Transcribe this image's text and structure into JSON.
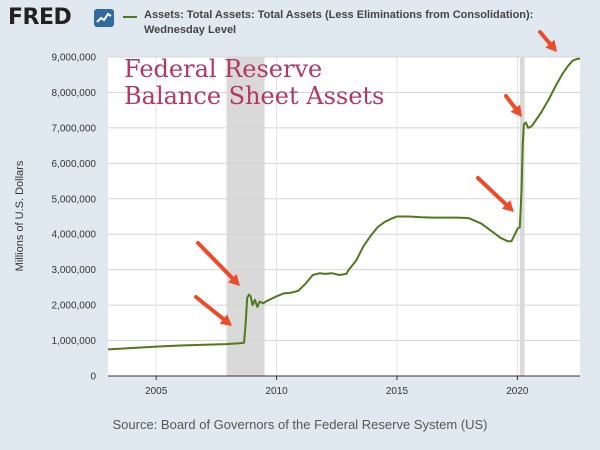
{
  "header": {
    "logo_text": "FRED",
    "logo_icon": "trend-line-icon",
    "legend_label": "Assets: Total Assets: Total Assets (Less Eliminations from Consolidation): Wednesday Level"
  },
  "overlay_title_lines": [
    "Federal Reserve",
    "Balance Sheet Assets"
  ],
  "source": "Source: Board of Governors of the Federal Reserve System (US)",
  "colors": {
    "series": "#4e7a1b",
    "recession": "#d9d9d9",
    "arrow": "#ee4b2b",
    "overlay_title": "#b5375f",
    "page_background": "#e1e9f0"
  },
  "chart_data": {
    "type": "line",
    "ylabel": "Millions of U.S. Dollars",
    "xlabel": "",
    "xlim": [
      2003.0,
      2022.6
    ],
    "ylim": [
      0,
      9000000
    ],
    "xticks": [
      2005,
      2010,
      2015,
      2020
    ],
    "yticks": [
      0,
      1000000,
      2000000,
      3000000,
      4000000,
      5000000,
      6000000,
      7000000,
      8000000,
      9000000
    ],
    "ytick_labels": [
      "0",
      "1,000,000",
      "2,000,000",
      "3,000,000",
      "4,000,000",
      "5,000,000",
      "6,000,000",
      "7,000,000",
      "8,000,000",
      "9,000,000"
    ],
    "grid": true,
    "recessions": [
      [
        2007.92,
        2009.5
      ],
      [
        2020.1,
        2020.3
      ]
    ],
    "series": [
      {
        "x": [
          2003.0,
          2004.0,
          2005.0,
          2006.0,
          2007.0,
          2007.9,
          2008.4,
          2008.65,
          2008.72,
          2008.78,
          2008.85,
          2008.92,
          2009.0,
          2009.1,
          2009.2,
          2009.3,
          2009.45,
          2009.55,
          2009.7,
          2009.85,
          2010.0,
          2010.3,
          2010.6,
          2010.9,
          2011.2,
          2011.5,
          2011.8,
          2012.0,
          2012.3,
          2012.6,
          2012.9,
          2013.0,
          2013.3,
          2013.6,
          2013.9,
          2014.2,
          2014.5,
          2014.8,
          2015.0,
          2015.5,
          2016.0,
          2016.5,
          2017.0,
          2017.5,
          2017.8,
          2018.0,
          2018.5,
          2019.0,
          2019.3,
          2019.6,
          2019.75,
          2019.9,
          2020.0,
          2020.1,
          2020.17,
          2020.22,
          2020.27,
          2020.35,
          2020.45,
          2020.6,
          2020.8,
          2021.0,
          2021.3,
          2021.6,
          2021.9,
          2022.1,
          2022.3,
          2022.5,
          2022.6
        ],
        "values": [
          750000,
          790000,
          830000,
          860000,
          880000,
          900000,
          920000,
          940000,
          1500000,
          2200000,
          2300000,
          2250000,
          2000000,
          2150000,
          1950000,
          2100000,
          2050000,
          2100000,
          2150000,
          2200000,
          2250000,
          2330000,
          2350000,
          2400000,
          2600000,
          2850000,
          2900000,
          2880000,
          2900000,
          2850000,
          2880000,
          3000000,
          3250000,
          3650000,
          3950000,
          4200000,
          4350000,
          4450000,
          4500000,
          4500000,
          4480000,
          4470000,
          4470000,
          4470000,
          4460000,
          4450000,
          4300000,
          4050000,
          3900000,
          3800000,
          3800000,
          4000000,
          4150000,
          4200000,
          5200000,
          6500000,
          7100000,
          7150000,
          7000000,
          7050000,
          7250000,
          7450000,
          7800000,
          8200000,
          8550000,
          8750000,
          8900000,
          8950000,
          8950000
        ]
      }
    ]
  }
}
